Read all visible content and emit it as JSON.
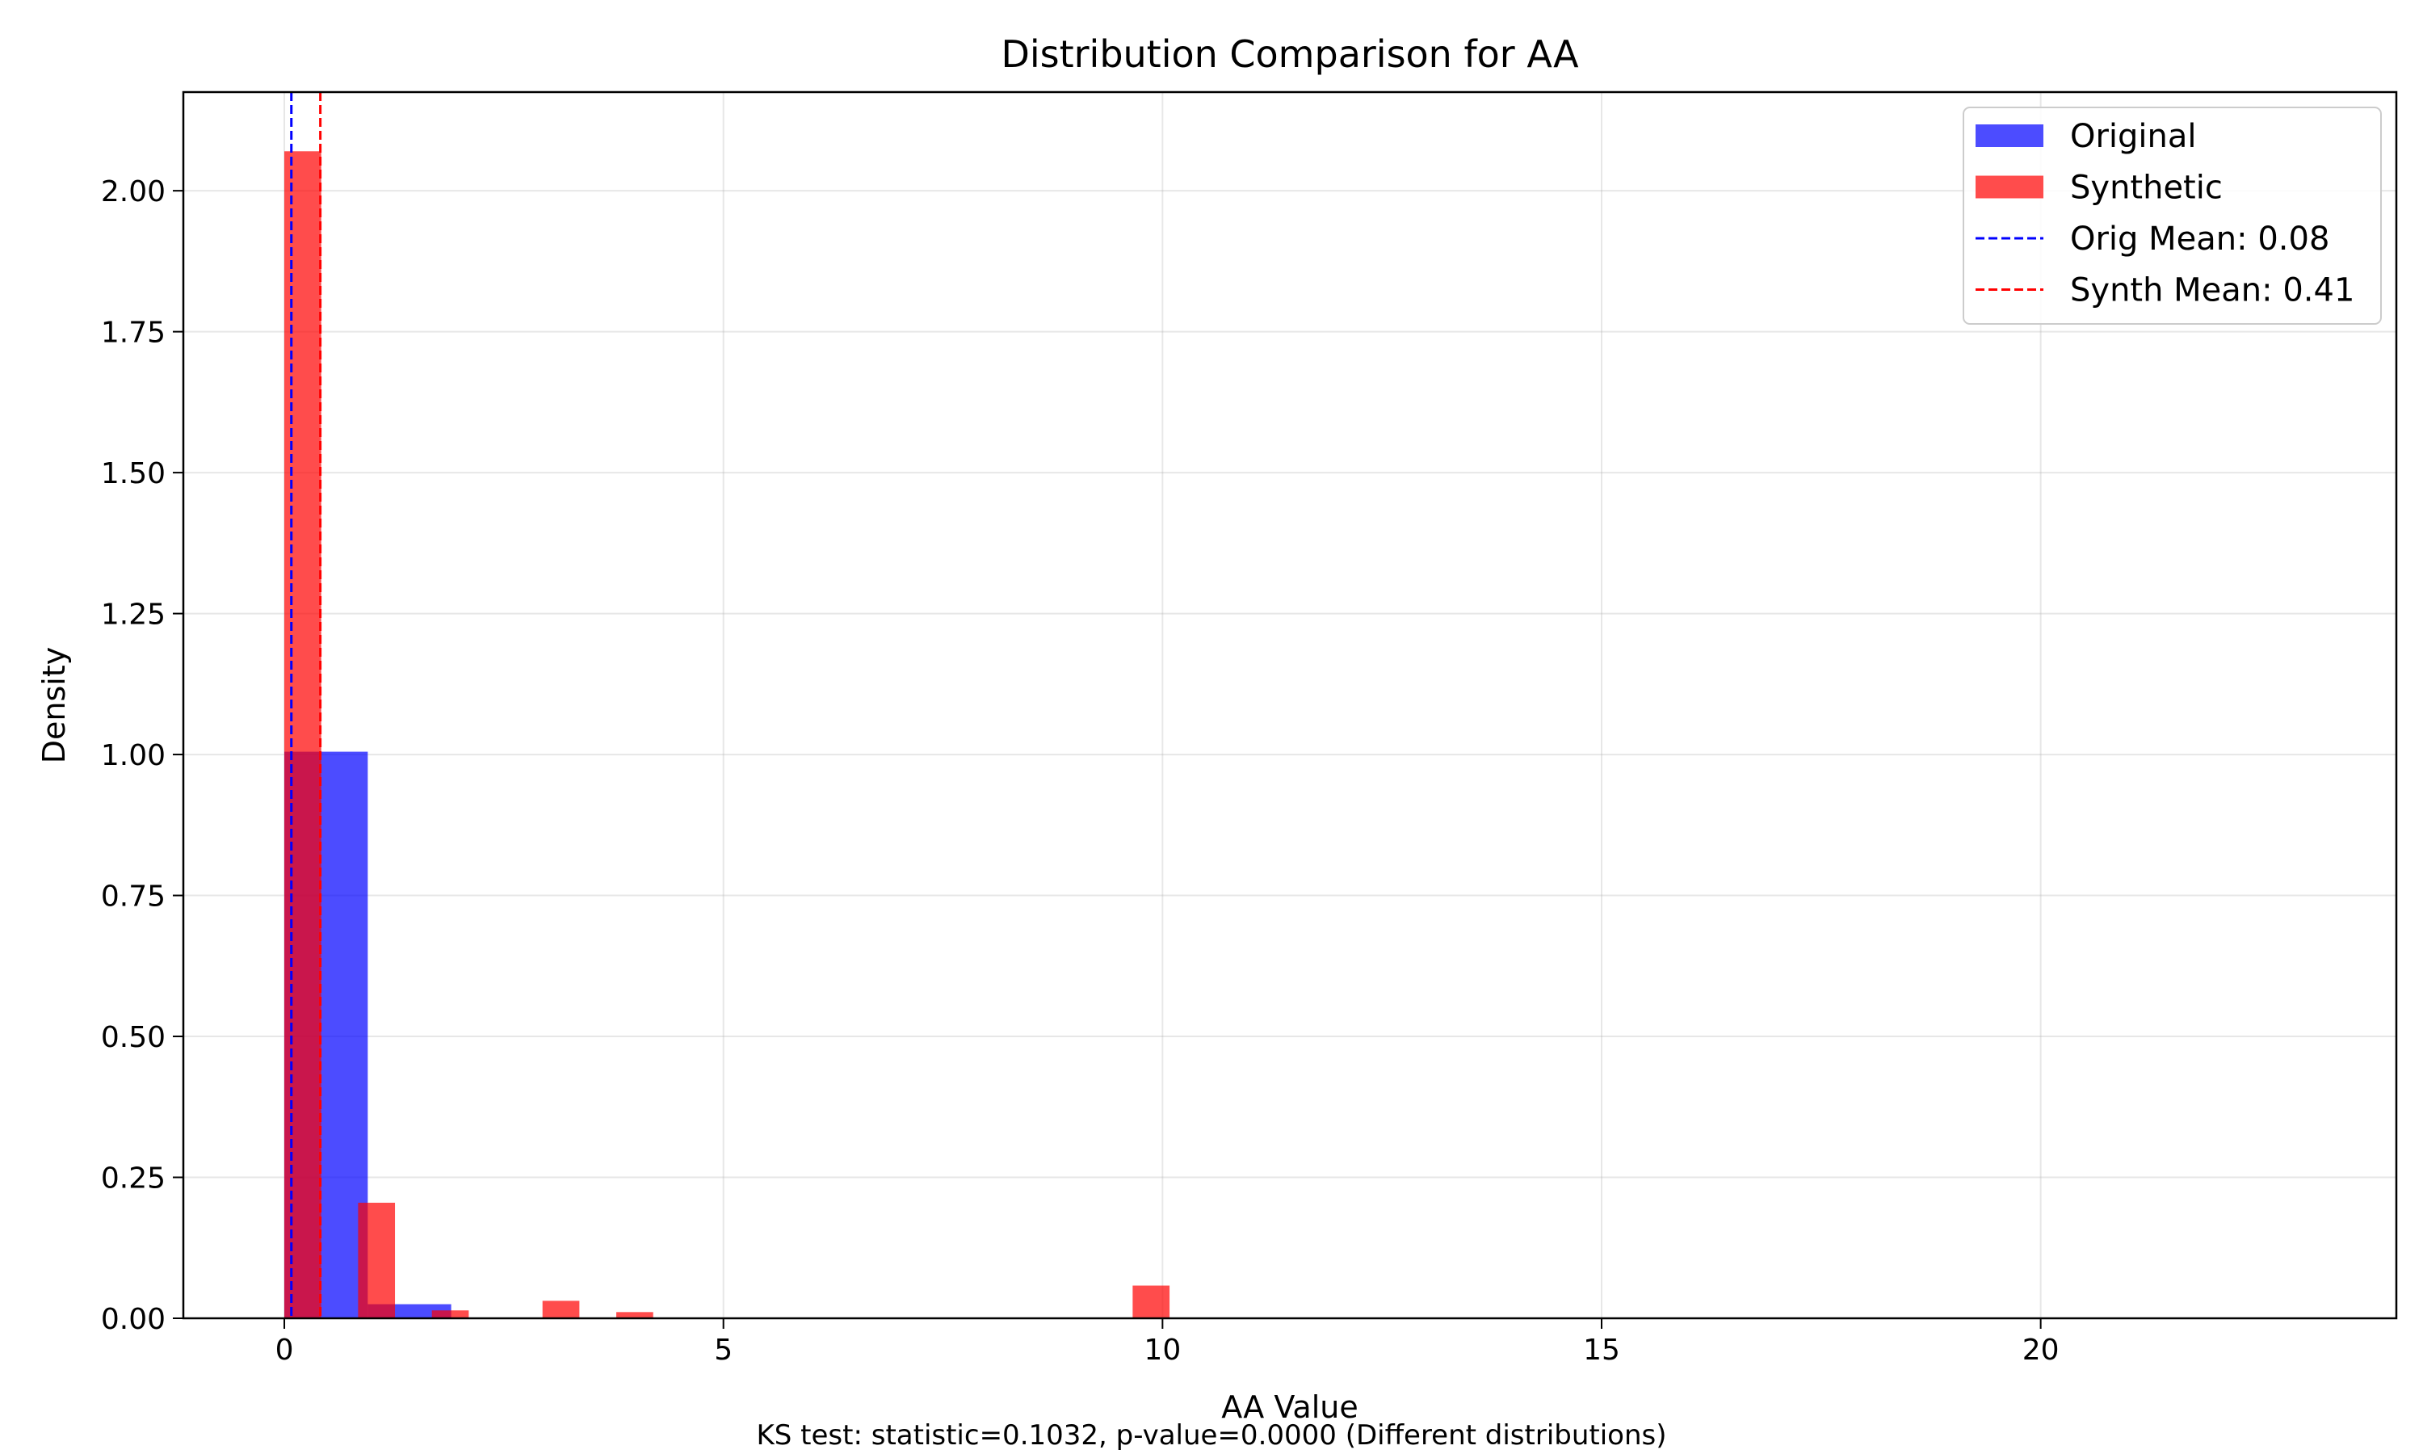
{
  "chart_data": {
    "type": "bar",
    "title": "Distribution Comparison for AA",
    "xlabel": "AA Value",
    "ylabel": "Density",
    "xlim": [
      -1.15,
      24.05
    ],
    "ylim": [
      0,
      2.175
    ],
    "xticks": [
      0,
      5,
      10,
      15,
      20
    ],
    "yticks": [
      0.0,
      0.25,
      0.5,
      0.75,
      1.0,
      1.25,
      1.5,
      1.75,
      2.0
    ],
    "ytick_labels": [
      "0.00",
      "0.25",
      "0.50",
      "0.75",
      "1.00",
      "1.25",
      "1.50",
      "1.75",
      "2.00"
    ],
    "grid": true,
    "legend_position": "top-right",
    "series": [
      {
        "name": "Original",
        "kind": "histogram",
        "color": "#0000ff",
        "opacity": 0.7,
        "bins": [
          {
            "x0": 0.0,
            "x1": 0.95,
            "value": 1.005
          },
          {
            "x0": 0.95,
            "x1": 1.9,
            "value": 0.025
          }
        ]
      },
      {
        "name": "Synthetic",
        "kind": "histogram",
        "color": "#ff0000",
        "opacity": 0.7,
        "bins": [
          {
            "x0": 0.0,
            "x1": 0.42,
            "value": 2.07
          },
          {
            "x0": 0.84,
            "x1": 1.26,
            "value": 0.205
          },
          {
            "x0": 1.68,
            "x1": 2.1,
            "value": 0.014
          },
          {
            "x0": 2.94,
            "x1": 3.36,
            "value": 0.031
          },
          {
            "x0": 3.78,
            "x1": 4.2,
            "value": 0.011
          },
          {
            "x0": 9.66,
            "x1": 10.08,
            "value": 0.058
          }
        ]
      }
    ],
    "reference_lines": [
      {
        "name": "Orig Mean: 0.08",
        "x": 0.08,
        "color": "#0000ff",
        "style": "dashed"
      },
      {
        "name": "Synth Mean: 0.41",
        "x": 0.41,
        "color": "#ff0000",
        "style": "dashed"
      }
    ],
    "footnote": "KS test: statistic=0.1032, p-value=0.0000 (Different distributions)"
  }
}
